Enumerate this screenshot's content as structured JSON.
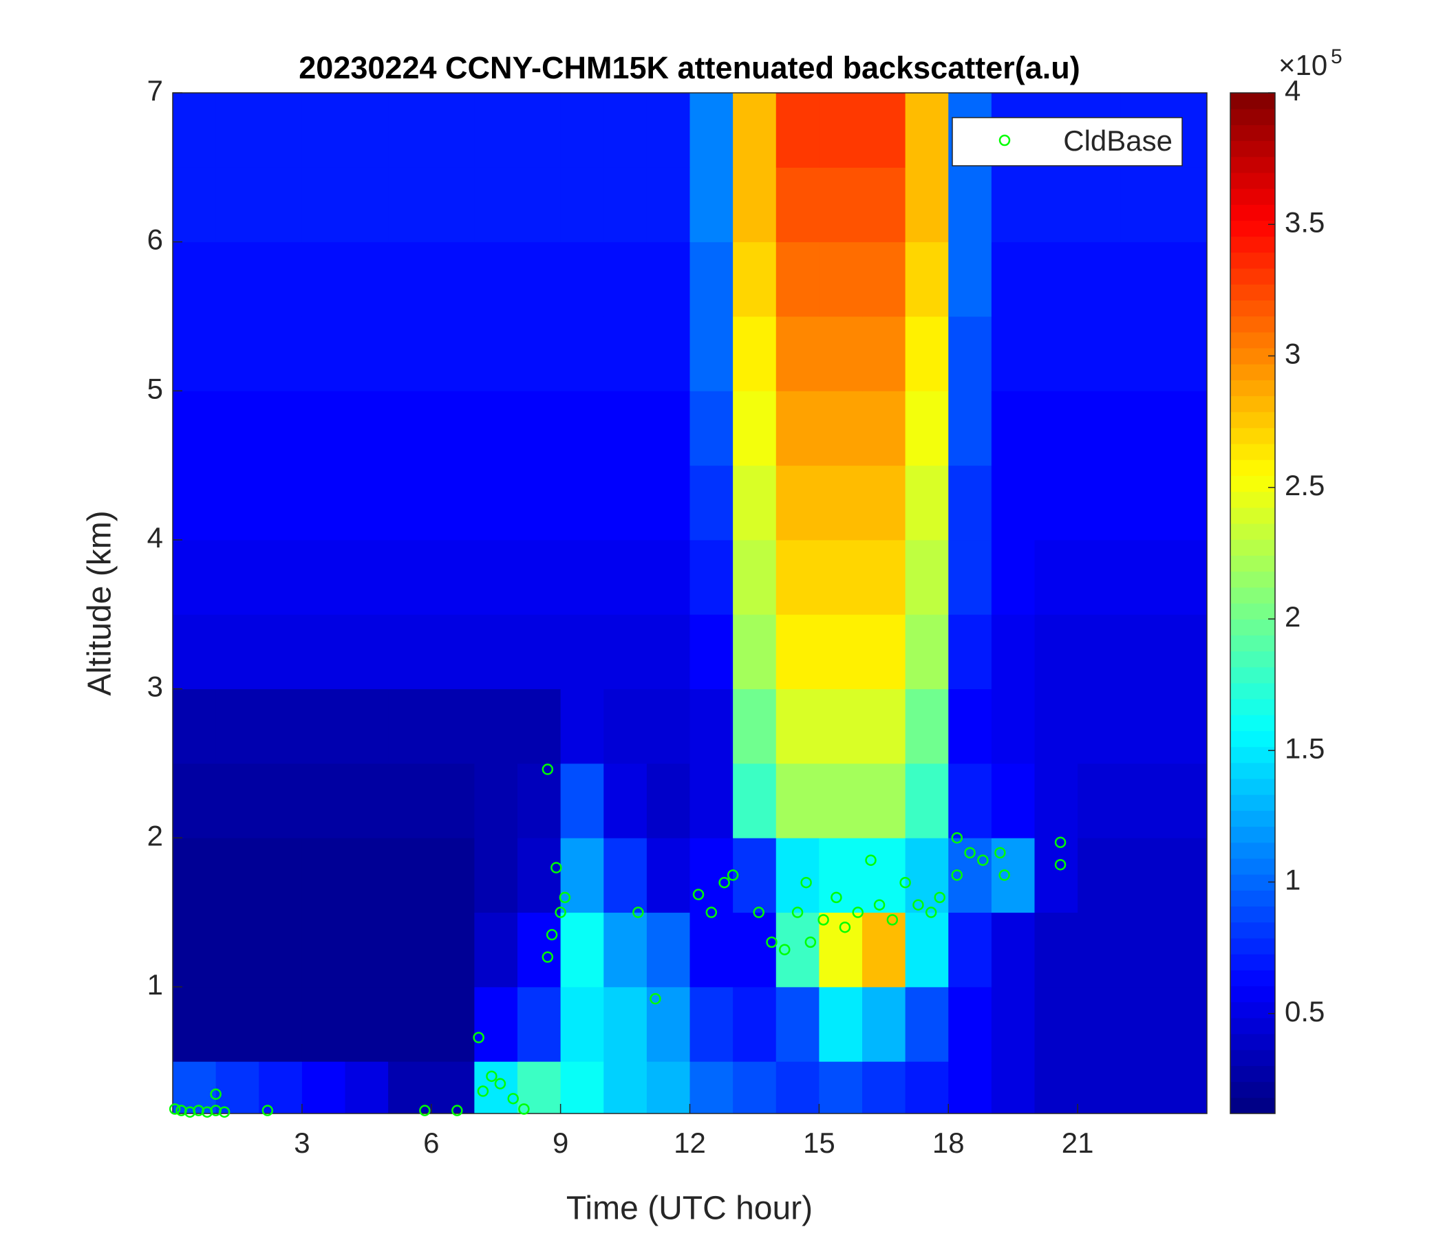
{
  "chart_data": {
    "type": "heatmap",
    "title": "20230224 CCNY-CHM15K attenuated backscatter(a.u)",
    "xlabel": "Time (UTC hour)",
    "ylabel": "Altitude (km)",
    "xlim": [
      0,
      24
    ],
    "ylim": [
      0.15,
      7
    ],
    "xticks": [
      3,
      6,
      9,
      12,
      15,
      18,
      21
    ],
    "yticks": [
      1,
      2,
      3,
      4,
      5,
      6,
      7
    ],
    "colormap": "jet",
    "clim": [
      0.12,
      4
    ],
    "cticks": [
      0.5,
      1,
      1.5,
      2,
      2.5,
      3,
      3.5,
      4
    ],
    "colorbar_scale_base": "×10",
    "colorbar_scale_exponent": "5",
    "x_bins": [
      0,
      1,
      2,
      3,
      4,
      5,
      6,
      7,
      8,
      9,
      10,
      11,
      12,
      13,
      14,
      15,
      16,
      17,
      18,
      19,
      20,
      21,
      22,
      23,
      24
    ],
    "y_bins": [
      0.15,
      0.5,
      1,
      1.5,
      2,
      2.5,
      3,
      3.5,
      4,
      4.5,
      5,
      5.5,
      6,
      6.5,
      7
    ],
    "z": [
      [
        0.9,
        0.8,
        0.7,
        0.6,
        0.5,
        0.3,
        0.3,
        1.5,
        1.8,
        1.6,
        1.4,
        1.3,
        1.0,
        0.9,
        0.8,
        0.9,
        0.8,
        0.7,
        0.6,
        0.5,
        0.4,
        0.4,
        0.4,
        0.4
      ],
      [
        0.2,
        0.2,
        0.2,
        0.2,
        0.2,
        0.2,
        0.2,
        0.6,
        0.8,
        1.5,
        1.4,
        1.2,
        0.8,
        0.7,
        0.9,
        1.5,
        1.3,
        0.9,
        0.6,
        0.5,
        0.4,
        0.4,
        0.4,
        0.4
      ],
      [
        0.2,
        0.2,
        0.2,
        0.2,
        0.2,
        0.2,
        0.2,
        0.4,
        0.6,
        1.6,
        1.2,
        1.0,
        0.6,
        0.6,
        1.8,
        2.5,
        2.8,
        1.5,
        0.7,
        0.5,
        0.4,
        0.4,
        0.4,
        0.4
      ],
      [
        0.2,
        0.2,
        0.2,
        0.2,
        0.2,
        0.2,
        0.2,
        0.3,
        0.4,
        1.2,
        0.8,
        0.5,
        0.6,
        0.8,
        1.5,
        1.6,
        1.6,
        1.4,
        1.0,
        1.2,
        0.5,
        0.4,
        0.4,
        0.4
      ],
      [
        0.25,
        0.25,
        0.25,
        0.25,
        0.25,
        0.25,
        0.25,
        0.3,
        0.35,
        0.9,
        0.5,
        0.4,
        0.5,
        1.8,
        2.2,
        2.2,
        2.2,
        1.8,
        0.7,
        0.6,
        0.5,
        0.45,
        0.45,
        0.45
      ],
      [
        0.3,
        0.3,
        0.3,
        0.3,
        0.3,
        0.3,
        0.3,
        0.3,
        0.3,
        0.5,
        0.45,
        0.45,
        0.5,
        2.0,
        2.4,
        2.4,
        2.4,
        2.0,
        0.6,
        0.55,
        0.5,
        0.5,
        0.5,
        0.5
      ],
      [
        0.5,
        0.5,
        0.5,
        0.5,
        0.5,
        0.5,
        0.5,
        0.5,
        0.5,
        0.5,
        0.5,
        0.5,
        0.6,
        2.2,
        2.6,
        2.6,
        2.6,
        2.2,
        0.7,
        0.55,
        0.5,
        0.5,
        0.5,
        0.5
      ],
      [
        0.55,
        0.55,
        0.55,
        0.55,
        0.55,
        0.55,
        0.55,
        0.55,
        0.55,
        0.55,
        0.55,
        0.55,
        0.7,
        2.3,
        2.7,
        2.7,
        2.7,
        2.3,
        0.8,
        0.6,
        0.55,
        0.55,
        0.55,
        0.55
      ],
      [
        0.6,
        0.6,
        0.6,
        0.6,
        0.6,
        0.6,
        0.6,
        0.6,
        0.6,
        0.6,
        0.6,
        0.6,
        0.8,
        2.4,
        2.8,
        2.8,
        2.8,
        2.4,
        0.8,
        0.6,
        0.6,
        0.6,
        0.6,
        0.6
      ],
      [
        0.6,
        0.6,
        0.6,
        0.6,
        0.6,
        0.6,
        0.6,
        0.6,
        0.6,
        0.6,
        0.6,
        0.6,
        0.9,
        2.5,
        2.9,
        2.9,
        2.9,
        2.5,
        0.9,
        0.6,
        0.6,
        0.6,
        0.6,
        0.6
      ],
      [
        0.65,
        0.65,
        0.65,
        0.65,
        0.65,
        0.65,
        0.65,
        0.65,
        0.65,
        0.65,
        0.65,
        0.65,
        1.0,
        2.6,
        3.0,
        3.0,
        3.0,
        2.6,
        0.9,
        0.65,
        0.65,
        0.65,
        0.65,
        0.65
      ],
      [
        0.65,
        0.65,
        0.65,
        0.65,
        0.65,
        0.65,
        0.65,
        0.65,
        0.65,
        0.65,
        0.65,
        0.65,
        1.0,
        2.7,
        3.1,
        3.1,
        3.1,
        2.7,
        1.0,
        0.65,
        0.65,
        0.65,
        0.65,
        0.65
      ],
      [
        0.7,
        0.7,
        0.7,
        0.7,
        0.7,
        0.7,
        0.7,
        0.7,
        0.7,
        0.7,
        0.7,
        0.7,
        1.1,
        2.8,
        3.2,
        3.2,
        3.2,
        2.8,
        1.0,
        0.7,
        0.7,
        0.7,
        0.7,
        0.7
      ],
      [
        0.7,
        0.7,
        0.7,
        0.7,
        0.7,
        0.7,
        0.7,
        0.7,
        0.7,
        0.7,
        0.7,
        0.7,
        1.1,
        2.8,
        3.3,
        3.3,
        3.3,
        2.8,
        1.0,
        0.7,
        0.7,
        0.7,
        0.7,
        0.7
      ]
    ],
    "legend": "upper right",
    "series": [
      {
        "name": "CldBase",
        "type": "scatter",
        "color": "#00ff00",
        "x": [
          0.05,
          0.2,
          0.4,
          0.6,
          0.8,
          1.0,
          1.2,
          1.0,
          2.2,
          5.85,
          6.6,
          7.1,
          7.2,
          7.4,
          7.6,
          7.9,
          8.15,
          8.7,
          8.8,
          8.9,
          9.0,
          9.1,
          8.7,
          10.8,
          11.2,
          12.2,
          12.5,
          12.8,
          13.0,
          13.6,
          13.9,
          14.2,
          14.5,
          14.7,
          14.8,
          15.1,
          15.4,
          15.6,
          15.9,
          16.2,
          16.4,
          16.7,
          17.0,
          17.3,
          17.6,
          17.8,
          18.2,
          18.2,
          18.5,
          18.8,
          19.2,
          19.3,
          20.6,
          20.6
        ],
        "y": [
          0.18,
          0.17,
          0.16,
          0.17,
          0.16,
          0.17,
          0.16,
          0.28,
          0.17,
          0.17,
          0.17,
          0.66,
          0.3,
          0.4,
          0.35,
          0.25,
          0.18,
          2.46,
          1.35,
          1.8,
          1.5,
          1.6,
          1.2,
          1.5,
          0.92,
          1.62,
          1.5,
          1.7,
          1.75,
          1.5,
          1.3,
          1.25,
          1.5,
          1.7,
          1.3,
          1.45,
          1.6,
          1.4,
          1.5,
          1.85,
          1.55,
          1.45,
          1.7,
          1.55,
          1.5,
          1.6,
          1.75,
          2.0,
          1.9,
          1.85,
          1.9,
          1.75,
          1.97,
          1.82
        ]
      }
    ]
  }
}
